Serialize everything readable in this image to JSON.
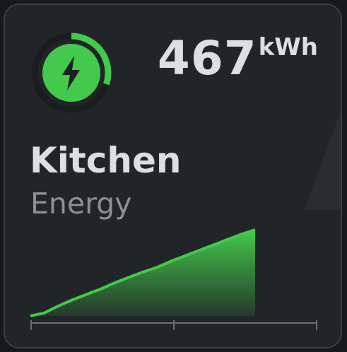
{
  "card": {
    "name": "Kitchen",
    "category": "Energy",
    "value": "467",
    "unit": "kWh",
    "progress_fraction": 0.3,
    "icon": "lightning-bolt-icon"
  },
  "colors": {
    "accent": "#43c94b",
    "background": "#222527",
    "border": "#3b3e41",
    "text_primary": "#dcdedf",
    "text_secondary": "#8d9093",
    "ring_track": "#1a1c1e"
  },
  "chart_data": {
    "type": "area",
    "title": "",
    "xlabel": "",
    "ylabel": "",
    "x": [
      0,
      1,
      2,
      3,
      4,
      5,
      6,
      7,
      8,
      9,
      10,
      11,
      12,
      13,
      14,
      15,
      16
    ],
    "values": [
      0,
      4,
      13,
      21,
      28,
      35,
      43,
      50,
      57,
      63,
      71,
      78,
      85,
      92,
      99,
      106,
      112
    ],
    "ylim": [
      0,
      112
    ],
    "grid": false,
    "x_ticks": 3
  }
}
